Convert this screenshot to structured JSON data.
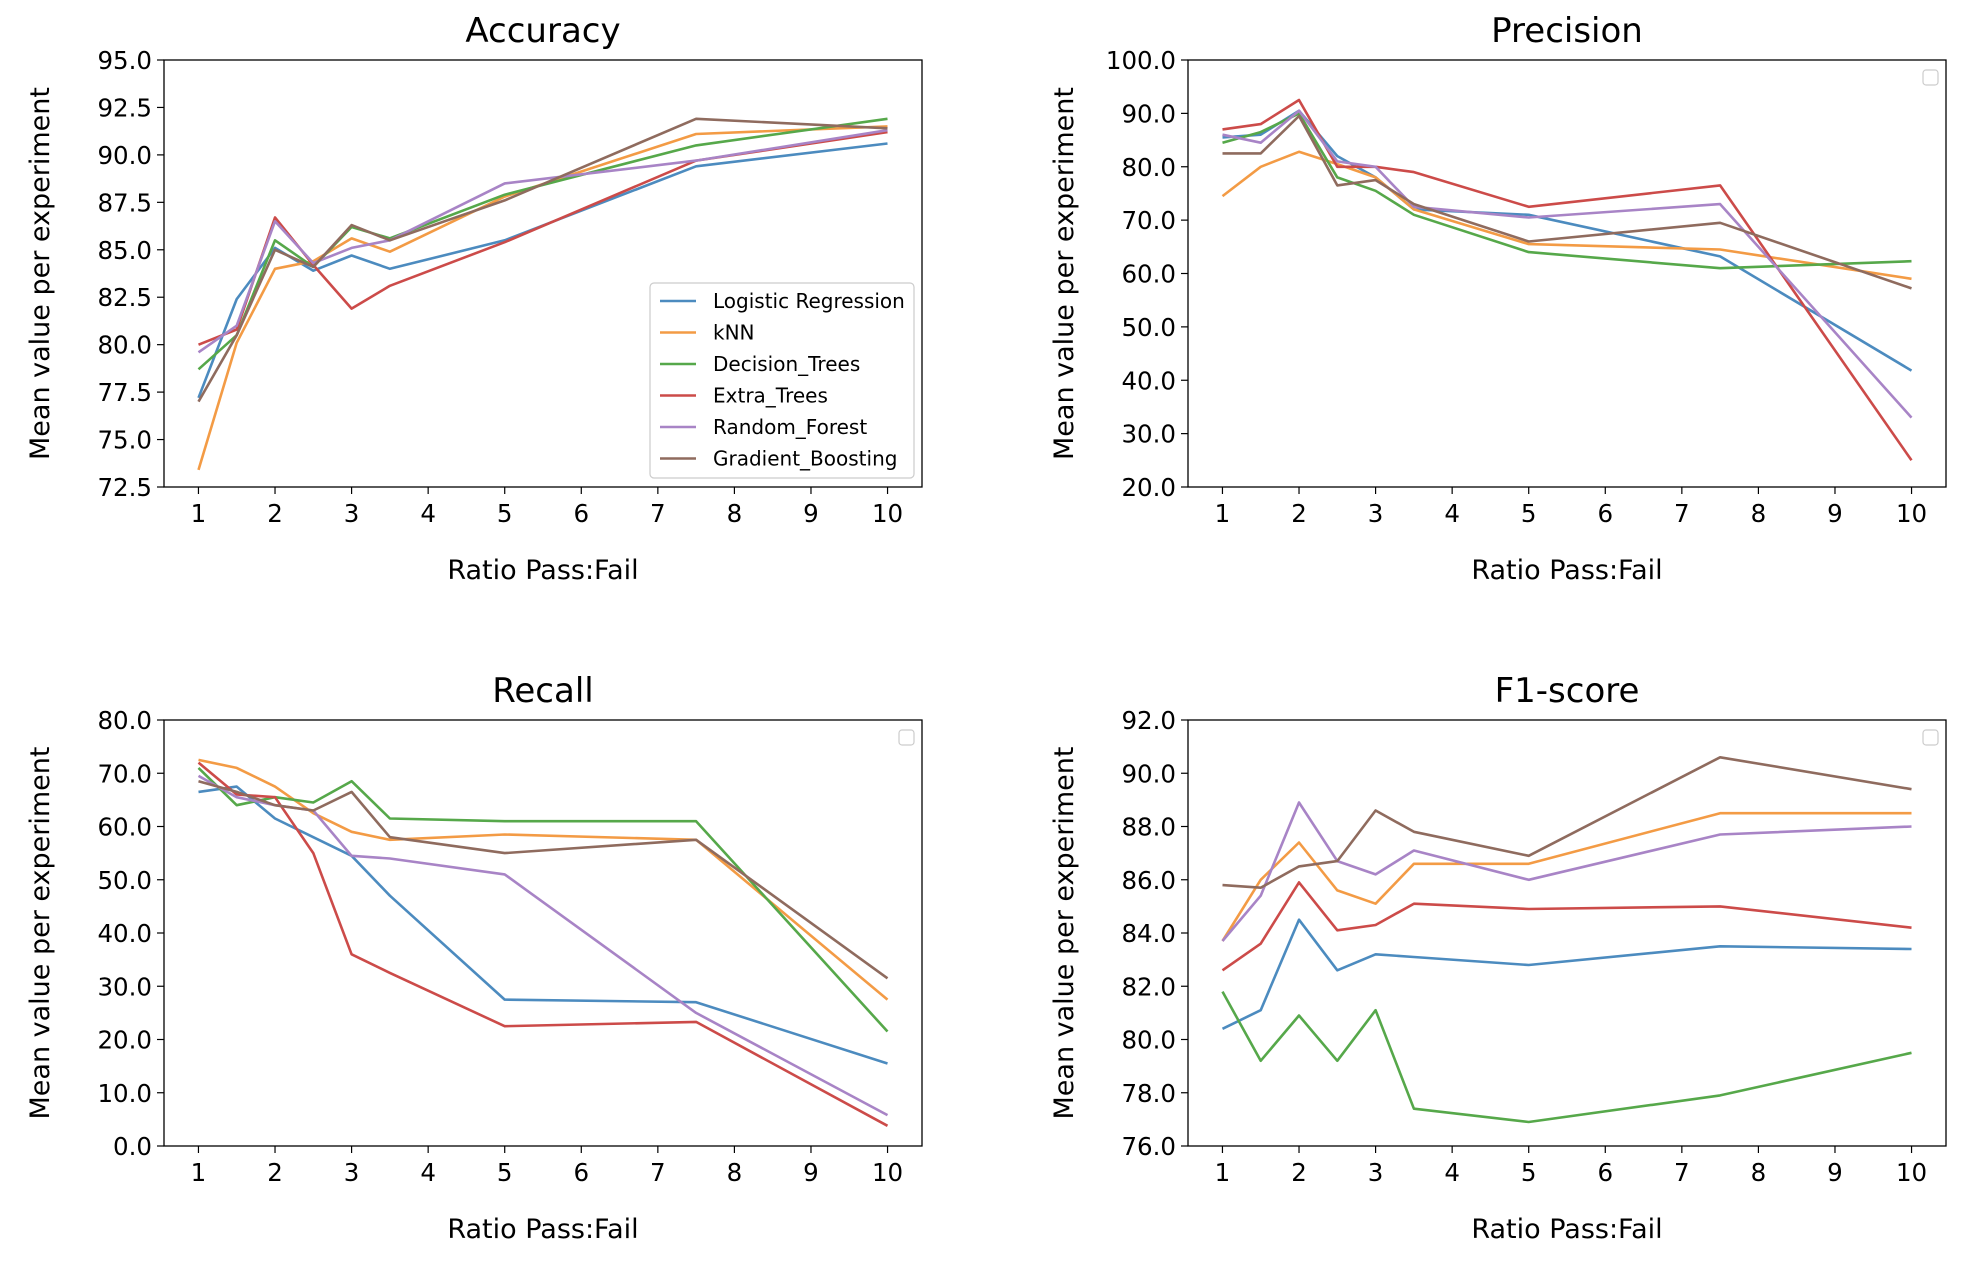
{
  "series_colors": {
    "Logistic Regression": "#4c8bbf",
    "kNN": "#f39b45",
    "Decision_Trees": "#56a84a",
    "Extra_Trees": "#cc4b49",
    "Random_Forest": "#a884c6",
    "Gradient_Boosting": "#8f6b5e"
  },
  "chart_data": [
    {
      "type": "line",
      "title": "Accuracy",
      "xlabel": "Ratio Pass:Fail",
      "ylabel": "Mean value per experiment",
      "xlim": [
        0.55,
        10.45
      ],
      "ylim": [
        72.5,
        95.0
      ],
      "xticks": [
        1,
        2,
        3,
        4,
        5,
        6,
        7,
        8,
        9,
        10
      ],
      "yticks": [
        72.5,
        75.0,
        77.5,
        80.0,
        82.5,
        85.0,
        87.5,
        90.0,
        92.5,
        95.0
      ],
      "ytick_labels": [
        "72.5",
        "75.0",
        "77.5",
        "80.0",
        "82.5",
        "85.0",
        "87.5",
        "90.0",
        "92.5",
        "95.0"
      ],
      "legend": "lower-right",
      "x": [
        1,
        1.5,
        2,
        2.5,
        3,
        3.5,
        5,
        7.5,
        10
      ],
      "series": [
        {
          "name": "Logistic Regression",
          "values": [
            77.2,
            82.4,
            85.1,
            83.9,
            84.7,
            84.0,
            85.5,
            89.4,
            90.6
          ]
        },
        {
          "name": "kNN",
          "values": [
            73.4,
            80.1,
            84.0,
            84.4,
            85.6,
            84.9,
            87.8,
            91.1,
            91.5
          ]
        },
        {
          "name": "Decision_Trees",
          "values": [
            78.7,
            80.5,
            85.5,
            84.1,
            86.2,
            85.6,
            87.9,
            90.5,
            91.9
          ]
        },
        {
          "name": "Extra_Trees",
          "values": [
            80.0,
            80.8,
            86.7,
            84.2,
            81.9,
            83.1,
            85.4,
            89.7,
            91.2
          ]
        },
        {
          "name": "Random_Forest",
          "values": [
            79.6,
            81.0,
            86.5,
            84.3,
            85.1,
            85.5,
            88.5,
            89.7,
            91.3
          ]
        },
        {
          "name": "Gradient_Boosting",
          "values": [
            77.0,
            80.5,
            85.0,
            84.1,
            86.3,
            85.5,
            87.6,
            91.9,
            91.4
          ]
        }
      ]
    },
    {
      "type": "line",
      "title": "Precision",
      "xlabel": "Ratio Pass:Fail",
      "ylabel": "Mean value per experiment",
      "xlim": [
        0.55,
        10.45
      ],
      "ylim": [
        20.0,
        100.0
      ],
      "xticks": [
        1,
        2,
        3,
        4,
        5,
        6,
        7,
        8,
        9,
        10
      ],
      "yticks": [
        20,
        30,
        40,
        50,
        60,
        70,
        80,
        90,
        100
      ],
      "ytick_labels": [
        "20.0",
        "30.0",
        "40.0",
        "50.0",
        "60.0",
        "70.0",
        "80.0",
        "90.0",
        "100.0"
      ],
      "legend": "top-right (empty)",
      "x": [
        1,
        1.5,
        2,
        2.5,
        3,
        3.5,
        5,
        7.5,
        10
      ],
      "series": [
        {
          "name": "Logistic Regression",
          "values": [
            85.5,
            86.0,
            90.5,
            82.0,
            78.0,
            72.0,
            71.0,
            63.2,
            41.8
          ]
        },
        {
          "name": "kNN",
          "values": [
            74.5,
            80.0,
            82.8,
            80.5,
            78.0,
            72.0,
            65.5,
            64.5,
            59.0
          ]
        },
        {
          "name": "Decision_Trees",
          "values": [
            84.5,
            86.5,
            90.0,
            78.0,
            75.5,
            71.0,
            64.0,
            61.0,
            62.3
          ]
        },
        {
          "name": "Extra_Trees",
          "values": [
            87.0,
            88.0,
            92.5,
            80.0,
            80.0,
            79.0,
            72.5,
            76.5,
            25.0
          ]
        },
        {
          "name": "Random_Forest",
          "values": [
            86.0,
            84.5,
            90.5,
            81.0,
            80.0,
            72.5,
            70.5,
            73.0,
            33.0
          ]
        },
        {
          "name": "Gradient_Boosting",
          "values": [
            82.5,
            82.5,
            89.5,
            76.5,
            77.5,
            73.0,
            66.0,
            69.5,
            57.2
          ]
        }
      ]
    },
    {
      "type": "line",
      "title": "Recall",
      "xlabel": "Ratio Pass:Fail",
      "ylabel": "Mean value per experiment",
      "xlim": [
        0.55,
        10.45
      ],
      "ylim": [
        0.0,
        80.0
      ],
      "xticks": [
        1,
        2,
        3,
        4,
        5,
        6,
        7,
        8,
        9,
        10
      ],
      "yticks": [
        0,
        10,
        20,
        30,
        40,
        50,
        60,
        70,
        80
      ],
      "ytick_labels": [
        "0.0",
        "10.0",
        "20.0",
        "30.0",
        "40.0",
        "50.0",
        "60.0",
        "70.0",
        "80.0"
      ],
      "legend": "top-right (empty)",
      "x": [
        1,
        1.5,
        2,
        2.5,
        3,
        3.5,
        5,
        7.5,
        10
      ],
      "series": [
        {
          "name": "Logistic Regression",
          "values": [
            66.5,
            67.5,
            61.5,
            58.0,
            54.5,
            47.0,
            27.5,
            27.0,
            15.5
          ]
        },
        {
          "name": "kNN",
          "values": [
            72.5,
            71.0,
            67.5,
            62.5,
            59.0,
            57.5,
            58.5,
            57.5,
            27.5
          ]
        },
        {
          "name": "Decision_Trees",
          "values": [
            71.0,
            64.0,
            65.5,
            64.5,
            68.5,
            61.5,
            61.0,
            61.0,
            21.5
          ]
        },
        {
          "name": "Extra_Trees",
          "values": [
            72.0,
            66.0,
            65.5,
            55.0,
            36.0,
            32.5,
            22.5,
            23.3,
            3.8
          ]
        },
        {
          "name": "Random_Forest",
          "values": [
            69.5,
            65.5,
            64.0,
            63.0,
            54.5,
            54.0,
            51.0,
            25.0,
            5.8
          ]
        },
        {
          "name": "Gradient_Boosting",
          "values": [
            68.5,
            66.5,
            64.0,
            63.0,
            66.5,
            58.0,
            55.0,
            57.5,
            31.5
          ]
        }
      ]
    },
    {
      "type": "line",
      "title": "F1-score",
      "xlabel": "Ratio Pass:Fail",
      "ylabel": "Mean value per experiment",
      "xlim": [
        0.55,
        10.45
      ],
      "ylim": [
        76.0,
        92.0
      ],
      "xticks": [
        1,
        2,
        3,
        4,
        5,
        6,
        7,
        8,
        9,
        10
      ],
      "yticks": [
        76,
        78,
        80,
        82,
        84,
        86,
        88,
        90,
        92
      ],
      "ytick_labels": [
        "76.0",
        "78.0",
        "80.0",
        "82.0",
        "84.0",
        "86.0",
        "88.0",
        "90.0",
        "92.0"
      ],
      "legend": "top-right (empty)",
      "x": [
        1,
        1.5,
        2,
        2.5,
        3,
        3.5,
        5,
        7.5,
        10
      ],
      "series": [
        {
          "name": "Logistic Regression",
          "values": [
            80.4,
            81.1,
            84.5,
            82.6,
            83.2,
            83.1,
            82.8,
            83.5,
            83.4
          ]
        },
        {
          "name": "kNN",
          "values": [
            83.7,
            86.0,
            87.4,
            85.6,
            85.1,
            86.6,
            86.6,
            88.5,
            88.5
          ]
        },
        {
          "name": "Decision_Trees",
          "values": [
            81.8,
            79.2,
            80.9,
            79.2,
            81.1,
            77.4,
            76.9,
            77.9,
            79.5
          ]
        },
        {
          "name": "Extra_Trees",
          "values": [
            82.6,
            83.6,
            85.9,
            84.1,
            84.3,
            85.1,
            84.9,
            85.0,
            84.2
          ]
        },
        {
          "name": "Random_Forest",
          "values": [
            83.7,
            85.4,
            88.9,
            86.7,
            86.2,
            87.1,
            86.0,
            87.7,
            88.0
          ]
        },
        {
          "name": "Gradient_Boosting",
          "values": [
            85.8,
            85.7,
            86.5,
            86.7,
            88.6,
            87.8,
            86.9,
            90.6,
            89.4
          ]
        }
      ]
    }
  ]
}
